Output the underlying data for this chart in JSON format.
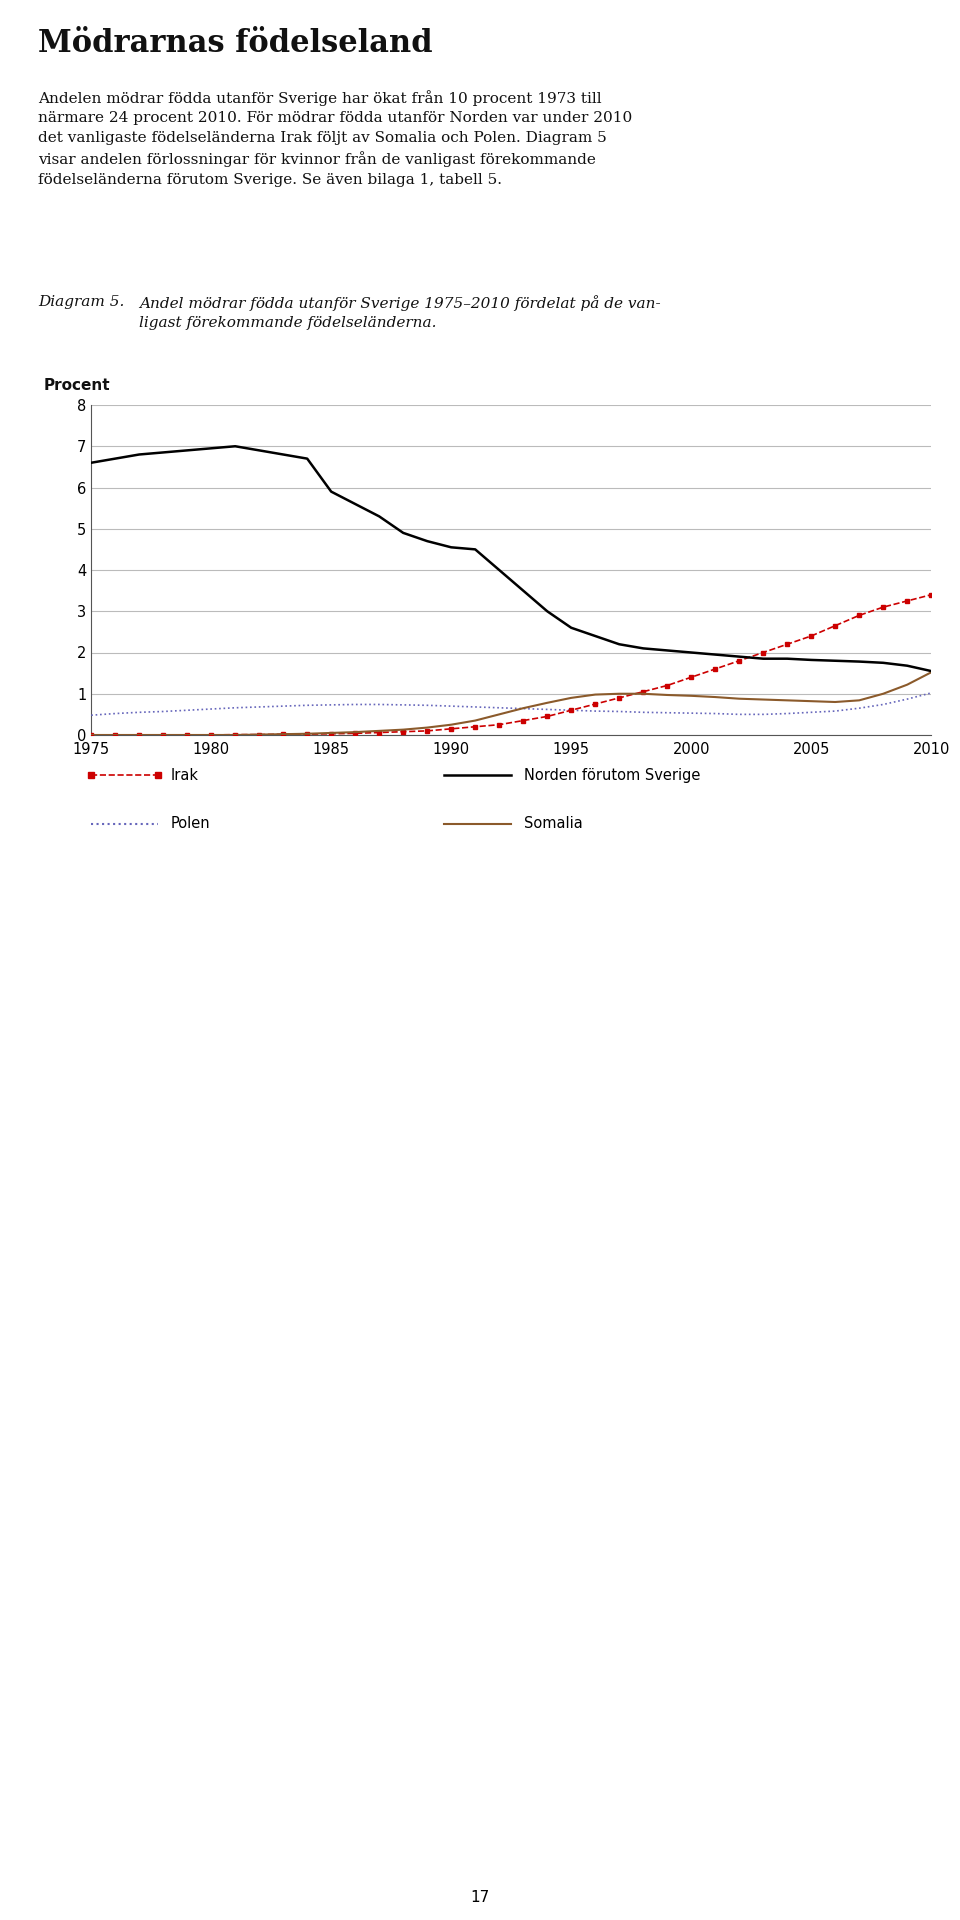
{
  "title": "Mödrarnas födelseland",
  "subtitle_text": "Andelen mödrar födda utanför Sverige har ökat från 10 procent 1973 till\nnärmare 24 procent 2010. För mödrar födda utanför Norden var under 2010\ndet vanligaste födelseländerna Irak följt av Somalia och Polen. Diagram 5\nvisar andelen förlossningar för kvinnor från de vanligast förekommande\nfödelseländerna förutom Sverige. Se även bilaga 1, tabell 5.",
  "diagram_label": "Diagram 5.",
  "diagram_caption_line1": "Andel mödrar födda utanför Sverige 1975–2010 fördelat på de van-",
  "diagram_caption_line2": "ligast förekommande födelseländerna.",
  "ylabel": "Procent",
  "ylim": [
    0,
    8
  ],
  "yticks": [
    0,
    1,
    2,
    3,
    4,
    5,
    6,
    7,
    8
  ],
  "xticks": [
    1975,
    1980,
    1985,
    1990,
    1995,
    2000,
    2005,
    2010
  ],
  "footer": "17",
  "norden": {
    "years": [
      1975,
      1976,
      1977,
      1978,
      1979,
      1980,
      1981,
      1982,
      1983,
      1984,
      1985,
      1986,
      1987,
      1988,
      1989,
      1990,
      1991,
      1992,
      1993,
      1994,
      1995,
      1996,
      1997,
      1998,
      1999,
      2000,
      2001,
      2002,
      2003,
      2004,
      2005,
      2006,
      2007,
      2008,
      2009,
      2010
    ],
    "values": [
      6.6,
      6.7,
      6.8,
      6.85,
      6.9,
      6.95,
      7.0,
      6.9,
      6.8,
      6.7,
      5.9,
      5.6,
      5.3,
      4.9,
      4.7,
      4.55,
      4.5,
      4.0,
      3.5,
      3.0,
      2.6,
      2.4,
      2.2,
      2.1,
      2.05,
      2.0,
      1.95,
      1.9,
      1.85,
      1.85,
      1.82,
      1.8,
      1.78,
      1.75,
      1.68,
      1.55
    ],
    "color": "#000000",
    "linestyle": "solid",
    "linewidth": 1.8,
    "label": "Norden förutom Sverige"
  },
  "irak": {
    "years": [
      1975,
      1976,
      1977,
      1978,
      1979,
      1980,
      1981,
      1982,
      1983,
      1984,
      1985,
      1986,
      1987,
      1988,
      1989,
      1990,
      1991,
      1992,
      1993,
      1994,
      1995,
      1996,
      1997,
      1998,
      1999,
      2000,
      2001,
      2002,
      2003,
      2004,
      2005,
      2006,
      2007,
      2008,
      2009,
      2010
    ],
    "values": [
      0.0,
      0.0,
      0.0,
      0.0,
      0.0,
      0.0,
      0.01,
      0.01,
      0.02,
      0.02,
      0.03,
      0.04,
      0.06,
      0.08,
      0.1,
      0.15,
      0.2,
      0.25,
      0.35,
      0.45,
      0.6,
      0.75,
      0.9,
      1.05,
      1.2,
      1.4,
      1.6,
      1.8,
      2.0,
      2.2,
      2.4,
      2.65,
      2.9,
      3.1,
      3.25,
      3.4
    ],
    "color": "#cc0000",
    "label": "Irak"
  },
  "polen": {
    "years": [
      1975,
      1976,
      1977,
      1978,
      1979,
      1980,
      1981,
      1982,
      1983,
      1984,
      1985,
      1986,
      1987,
      1988,
      1989,
      1990,
      1991,
      1992,
      1993,
      1994,
      1995,
      1996,
      1997,
      1998,
      1999,
      2000,
      2001,
      2002,
      2003,
      2004,
      2005,
      2006,
      2007,
      2008,
      2009,
      2010
    ],
    "values": [
      0.48,
      0.52,
      0.55,
      0.57,
      0.6,
      0.63,
      0.66,
      0.68,
      0.7,
      0.72,
      0.73,
      0.74,
      0.74,
      0.73,
      0.72,
      0.7,
      0.68,
      0.66,
      0.64,
      0.62,
      0.6,
      0.58,
      0.57,
      0.55,
      0.54,
      0.53,
      0.52,
      0.5,
      0.5,
      0.52,
      0.55,
      0.58,
      0.65,
      0.74,
      0.87,
      1.02
    ],
    "color": "#6666bb",
    "label": "Polen"
  },
  "somalia": {
    "years": [
      1975,
      1976,
      1977,
      1978,
      1979,
      1980,
      1981,
      1982,
      1983,
      1984,
      1985,
      1986,
      1987,
      1988,
      1989,
      1990,
      1991,
      1992,
      1993,
      1994,
      1995,
      1996,
      1997,
      1998,
      1999,
      2000,
      2001,
      2002,
      2003,
      2004,
      2005,
      2006,
      2007,
      2008,
      2009,
      2010
    ],
    "values": [
      0.0,
      0.0,
      0.0,
      0.0,
      0.0,
      0.0,
      0.0,
      0.01,
      0.02,
      0.03,
      0.05,
      0.07,
      0.1,
      0.13,
      0.18,
      0.25,
      0.35,
      0.5,
      0.65,
      0.78,
      0.9,
      0.98,
      1.0,
      1.0,
      0.97,
      0.95,
      0.92,
      0.88,
      0.86,
      0.84,
      0.82,
      0.8,
      0.84,
      1.0,
      1.22,
      1.52
    ],
    "color": "#8B5A2B",
    "label": "Somalia"
  },
  "background_color": "#ffffff",
  "grid_color": "#bbbbbb"
}
